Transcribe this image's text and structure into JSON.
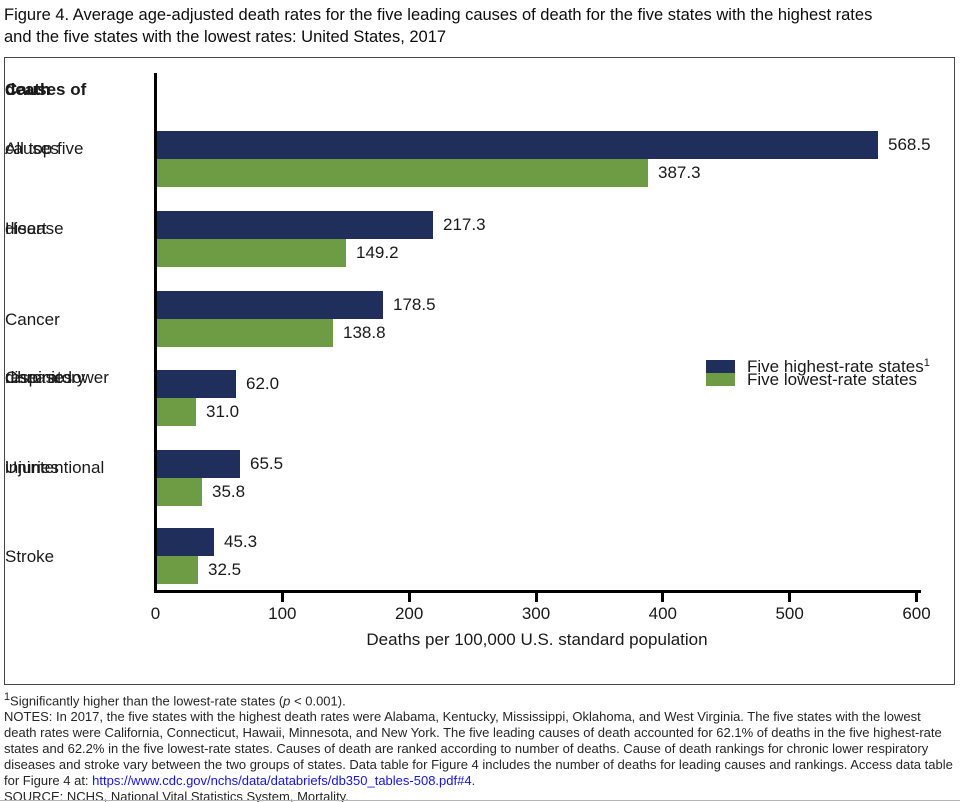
{
  "header": {
    "title_lines": [
      "Figure 4. Average age-adjusted death rates for the five leading causes of death for the five states with the highest rates",
      "and the five states with the lowest rates: United States, 2017"
    ]
  },
  "chart_data": {
    "type": "bar",
    "orientation": "horizontal",
    "y_axis_title_lines": [
      "Causes of",
      "death"
    ],
    "categories": [
      {
        "label_lines": [
          "All top five",
          "causes"
        ],
        "key": "all-top-five-causes"
      },
      {
        "label_lines": [
          "Heart",
          "disease"
        ],
        "key": "heart-disease"
      },
      {
        "label_lines": [
          "Cancer"
        ],
        "key": "cancer"
      },
      {
        "label_lines": [
          "Chronic lower",
          "respiratory",
          "diseases"
        ],
        "key": "chronic-lower-respiratory-diseases"
      },
      {
        "label_lines": [
          "Unintentional",
          "injuries"
        ],
        "key": "unintentional-injuries"
      },
      {
        "label_lines": [
          "Stroke"
        ],
        "key": "stroke"
      }
    ],
    "series": [
      {
        "key": "highest",
        "name": "Five highest-rate states",
        "legend_sup": "1",
        "color": "#1f2e5a",
        "values": [
          568.5,
          217.3,
          178.5,
          62.0,
          65.5,
          45.3
        ]
      },
      {
        "key": "lowest",
        "name": "Five lowest-rate states",
        "legend_sup": "",
        "color": "#6d9c44",
        "values": [
          387.3,
          149.2,
          138.8,
          31.0,
          35.8,
          32.5
        ]
      }
    ],
    "xlabel": "Deaths per 100,000 U.S. standard population",
    "x_ticks": [
      0,
      100,
      200,
      300,
      400,
      500,
      600
    ],
    "xlim": [
      0,
      600
    ],
    "value_label_decimals": 1,
    "grid": false,
    "legend_position": "middle-right"
  },
  "notes": {
    "footnote_sup": "1",
    "footnote_pre": "Significantly higher than the lowest-rate states (",
    "footnote_p": "p",
    "footnote_post": " < 0.001).",
    "notes_text": "NOTES: In 2017, the five states with the highest death rates were Alabama, Kentucky, Mississippi, Oklahoma, and West Virginia. The five states with the lowest death rates were California, Connecticut, Hawaii, Minnesota, and New York. The five leading causes of death accounted for 62.1% of deaths in the five highest-rate states and 62.2% in the five lowest-rate states. Causes of death are ranked according to number of deaths. Cause of death rankings for chronic lower respiratory diseases and stroke vary between the two groups of states.  Data table for Figure 4 includes the number of deaths for leading causes and rankings. Access data table for Figure 4 at: ",
    "link_text": "https://www.cdc.gov/nchs/data/databriefs/db350_tables-508.pdf#4",
    "after_link": ".",
    "source_text": "SOURCE: NCHS, National Vital Statistics System, Mortality."
  }
}
